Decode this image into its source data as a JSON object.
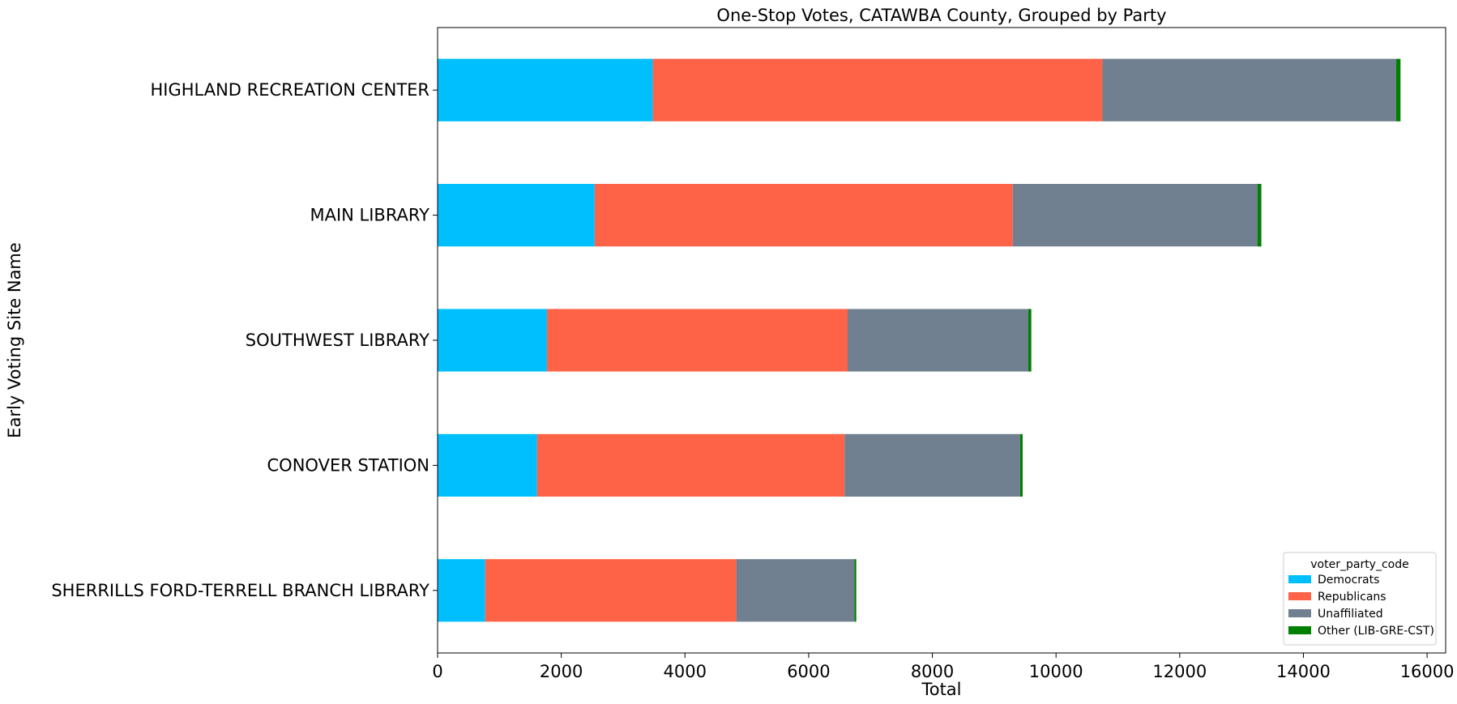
{
  "chart_data": {
    "type": "bar",
    "orientation": "horizontal",
    "stacked": true,
    "title": "One-Stop Votes, CATAWBA County, Grouped by Party",
    "xlabel": "Total",
    "ylabel": "Early Voting Site Name",
    "xlim": [
      0,
      16300
    ],
    "xticks": [
      0,
      2000,
      4000,
      6000,
      8000,
      10000,
      12000,
      14000,
      16000
    ],
    "categories": [
      "HIGHLAND RECREATION CENTER",
      "MAIN LIBRARY",
      "SOUTHWEST LIBRARY",
      "CONOVER STATION",
      "SHERRILLS FORD-TERRELL BRANCH LIBRARY"
    ],
    "series": [
      {
        "name": "Democrats",
        "color": "#00bfff",
        "values": [
          3480,
          2540,
          1770,
          1610,
          770
        ]
      },
      {
        "name": "Republicans",
        "color": "#ff6347",
        "values": [
          7270,
          6760,
          4860,
          4970,
          4060
        ]
      },
      {
        "name": "Unaffiliated",
        "color": "#708090",
        "values": [
          4750,
          3960,
          2920,
          2840,
          1910
        ]
      },
      {
        "name": "Other (LIB-GRE-CST)",
        "color": "#008000",
        "values": [
          70,
          60,
          50,
          40,
          30
        ]
      }
    ],
    "legend": {
      "title": "voter_party_code",
      "placement": "lower-right"
    },
    "grid": false
  }
}
